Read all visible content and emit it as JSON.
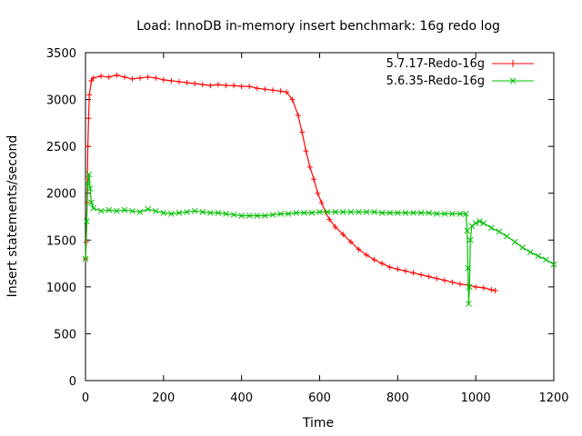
{
  "chart_data": {
    "type": "scatter",
    "title": "Load: InnoDB in-memory insert benchmark: 16g redo log",
    "xlabel": "Time",
    "ylabel": "Insert statements/second",
    "xlim": [
      0,
      1200
    ],
    "ylim": [
      0,
      3500
    ],
    "xticks": [
      0,
      200,
      400,
      600,
      800,
      1000,
      1200
    ],
    "yticks": [
      0,
      500,
      1000,
      1500,
      2000,
      2500,
      3000,
      3500
    ],
    "grid": false,
    "legend_position": "top-right",
    "series": [
      {
        "name": "5.7.17-Redo-16g",
        "color": "#ff0000",
        "marker": "plus",
        "points": [
          [
            0,
            1300
          ],
          [
            2,
            1480
          ],
          [
            4,
            1900
          ],
          [
            6,
            2500
          ],
          [
            8,
            2800
          ],
          [
            10,
            3050
          ],
          [
            15,
            3200
          ],
          [
            20,
            3230
          ],
          [
            40,
            3250
          ],
          [
            60,
            3240
          ],
          [
            80,
            3260
          ],
          [
            100,
            3240
          ],
          [
            120,
            3220
          ],
          [
            140,
            3230
          ],
          [
            160,
            3240
          ],
          [
            180,
            3230
          ],
          [
            200,
            3210
          ],
          [
            220,
            3200
          ],
          [
            240,
            3190
          ],
          [
            260,
            3180
          ],
          [
            280,
            3170
          ],
          [
            300,
            3160
          ],
          [
            320,
            3150
          ],
          [
            340,
            3160
          ],
          [
            360,
            3150
          ],
          [
            380,
            3150
          ],
          [
            400,
            3140
          ],
          [
            420,
            3140
          ],
          [
            440,
            3120
          ],
          [
            460,
            3110
          ],
          [
            480,
            3100
          ],
          [
            500,
            3090
          ],
          [
            515,
            3080
          ],
          [
            530,
            3000
          ],
          [
            545,
            2830
          ],
          [
            555,
            2650
          ],
          [
            565,
            2450
          ],
          [
            575,
            2280
          ],
          [
            585,
            2150
          ],
          [
            595,
            2000
          ],
          [
            605,
            1900
          ],
          [
            615,
            1800
          ],
          [
            625,
            1720
          ],
          [
            640,
            1640
          ],
          [
            660,
            1560
          ],
          [
            680,
            1480
          ],
          [
            700,
            1400
          ],
          [
            720,
            1340
          ],
          [
            740,
            1290
          ],
          [
            760,
            1250
          ],
          [
            780,
            1210
          ],
          [
            800,
            1190
          ],
          [
            820,
            1170
          ],
          [
            840,
            1150
          ],
          [
            860,
            1130
          ],
          [
            880,
            1110
          ],
          [
            900,
            1090
          ],
          [
            920,
            1070
          ],
          [
            940,
            1050
          ],
          [
            960,
            1030
          ],
          [
            980,
            1020
          ],
          [
            1000,
            1000
          ],
          [
            1020,
            990
          ],
          [
            1040,
            970
          ],
          [
            1050,
            960
          ]
        ]
      },
      {
        "name": "5.6.35-Redo-16g",
        "color": "#00c000",
        "marker": "cross",
        "points": [
          [
            0,
            1300
          ],
          [
            3,
            1700
          ],
          [
            6,
            2100
          ],
          [
            9,
            2200
          ],
          [
            12,
            2050
          ],
          [
            15,
            1900
          ],
          [
            20,
            1840
          ],
          [
            40,
            1810
          ],
          [
            60,
            1820
          ],
          [
            80,
            1810
          ],
          [
            100,
            1820
          ],
          [
            120,
            1810
          ],
          [
            140,
            1800
          ],
          [
            160,
            1830
          ],
          [
            180,
            1810
          ],
          [
            200,
            1790
          ],
          [
            220,
            1780
          ],
          [
            240,
            1790
          ],
          [
            260,
            1800
          ],
          [
            280,
            1810
          ],
          [
            300,
            1800
          ],
          [
            320,
            1790
          ],
          [
            340,
            1790
          ],
          [
            360,
            1780
          ],
          [
            380,
            1770
          ],
          [
            400,
            1760
          ],
          [
            420,
            1760
          ],
          [
            440,
            1760
          ],
          [
            460,
            1760
          ],
          [
            480,
            1770
          ],
          [
            500,
            1780
          ],
          [
            520,
            1780
          ],
          [
            540,
            1790
          ],
          [
            560,
            1790
          ],
          [
            580,
            1790
          ],
          [
            600,
            1800
          ],
          [
            620,
            1800
          ],
          [
            640,
            1800
          ],
          [
            660,
            1800
          ],
          [
            680,
            1800
          ],
          [
            700,
            1800
          ],
          [
            720,
            1800
          ],
          [
            740,
            1800
          ],
          [
            760,
            1790
          ],
          [
            780,
            1790
          ],
          [
            800,
            1790
          ],
          [
            820,
            1790
          ],
          [
            840,
            1790
          ],
          [
            860,
            1790
          ],
          [
            880,
            1790
          ],
          [
            900,
            1780
          ],
          [
            920,
            1780
          ],
          [
            940,
            1780
          ],
          [
            960,
            1780
          ],
          [
            975,
            1780
          ],
          [
            978,
            1600
          ],
          [
            980,
            1200
          ],
          [
            982,
            820
          ],
          [
            984,
            1000
          ],
          [
            986,
            1500
          ],
          [
            990,
            1650
          ],
          [
            1000,
            1680
          ],
          [
            1010,
            1700
          ],
          [
            1020,
            1680
          ],
          [
            1040,
            1630
          ],
          [
            1060,
            1590
          ],
          [
            1080,
            1540
          ],
          [
            1100,
            1480
          ],
          [
            1120,
            1420
          ],
          [
            1140,
            1370
          ],
          [
            1160,
            1330
          ],
          [
            1180,
            1290
          ],
          [
            1200,
            1240
          ]
        ]
      }
    ]
  }
}
